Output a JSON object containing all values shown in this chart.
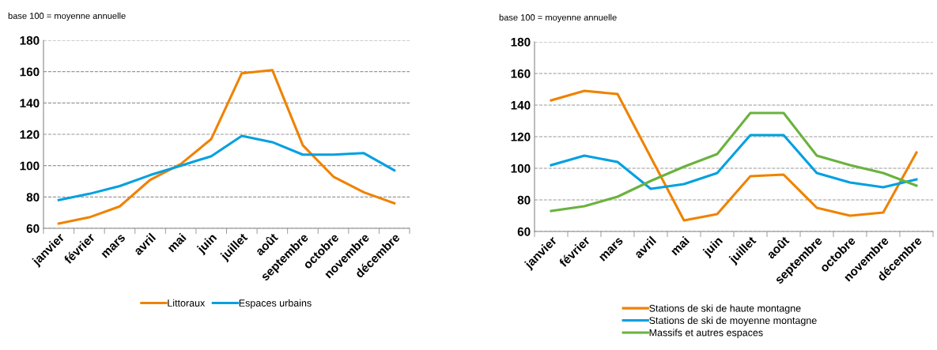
{
  "chart_data": [
    {
      "type": "line",
      "annotations": [
        "base 100 = moyenne annuelle"
      ],
      "categories": [
        "janvier",
        "février",
        "mars",
        "avril",
        "mai",
        "juin",
        "juillet",
        "août",
        "septembre",
        "octobre",
        "novembre",
        "décembre"
      ],
      "series": [
        {
          "name": "Littoraux",
          "color": "#ef8200",
          "values": [
            63,
            67,
            74,
            91,
            101,
            117,
            159,
            161,
            113,
            93,
            83,
            76
          ]
        },
        {
          "name": "Espaces urbains",
          "color": "#00a0e0",
          "values": [
            78,
            82,
            87,
            94,
            100,
            106,
            119,
            115,
            107,
            107,
            108,
            97
          ]
        }
      ],
      "ylim": [
        60,
        180
      ],
      "yticks": [
        60,
        80,
        100,
        120,
        140,
        160,
        180
      ],
      "grid": "y",
      "legend": "bottom",
      "marker": "none",
      "line_style": "solid"
    },
    {
      "type": "line",
      "annotations": [
        "base 100 = moyenne annuelle"
      ],
      "categories": [
        "janvier",
        "février",
        "mars",
        "avril",
        "mai",
        "juin",
        "juillet",
        "août",
        "septembre",
        "octobre",
        "novembre",
        "décembre"
      ],
      "series": [
        {
          "name": "Stations de ski de haute montagne",
          "color": "#ef8200",
          "values": [
            143,
            149,
            147,
            107,
            67,
            71,
            95,
            96,
            75,
            70,
            72,
            110
          ]
        },
        {
          "name": "Stations de ski de moyenne montagne",
          "color": "#00a0e0",
          "values": [
            102,
            108,
            104,
            87,
            90,
            97,
            121,
            121,
            97,
            91,
            88,
            93
          ]
        },
        {
          "name": "Massifs et autres espaces",
          "color": "#6ab23e",
          "values": [
            73,
            76,
            82,
            92,
            101,
            109,
            135,
            135,
            108,
            102,
            97,
            89
          ]
        }
      ],
      "ylim": [
        60,
        180
      ],
      "yticks": [
        60,
        80,
        100,
        120,
        140,
        160,
        180
      ],
      "grid": "y",
      "legend": "bottom",
      "marker": "none",
      "line_style": "solid"
    }
  ]
}
